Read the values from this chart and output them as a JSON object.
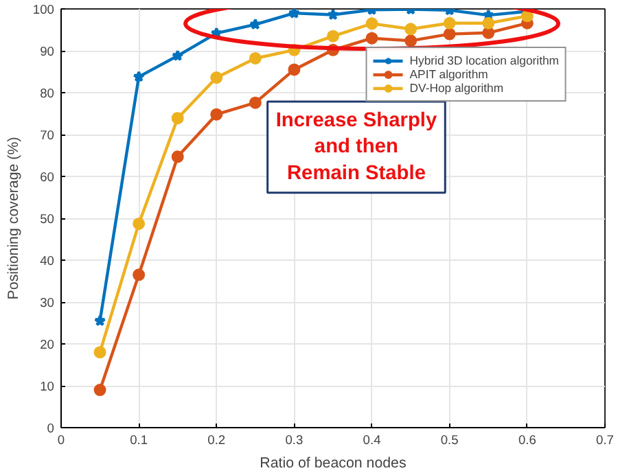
{
  "chart_data": {
    "type": "line",
    "xlabel": "Ratio of beacon nodes",
    "ylabel": "Positioning coverage (%)",
    "x": [
      0.05,
      0.1,
      0.15,
      0.2,
      0.25,
      0.3,
      0.35,
      0.4,
      0.45,
      0.5,
      0.55,
      0.6
    ],
    "series": [
      {
        "name": "Hybrid 3D location algorithm",
        "color": "#0072bd",
        "marker": "star",
        "values": [
          25.5,
          83.8,
          88.8,
          94.2,
          96.3,
          99,
          98.6,
          99.8,
          99.9,
          99.7,
          98.5,
          99.4
        ]
      },
      {
        "name": "APIT algorithm",
        "color": "#d95319",
        "marker": "circle",
        "values": [
          9,
          36.5,
          64.7,
          74.8,
          77.6,
          85.5,
          90.2,
          93,
          92.4,
          94,
          94.3,
          96.6
        ]
      },
      {
        "name": "DV-Hop algorithm",
        "color": "#edb120",
        "marker": "circle",
        "values": [
          18,
          48.7,
          73.9,
          83.6,
          88.2,
          90.2,
          93.5,
          96.5,
          95.2,
          96.6,
          96.6,
          98.3
        ]
      }
    ],
    "annotations": [
      "Increase Sharply\nand then\nRemain Stable"
    ],
    "xlim": [
      0,
      0.7
    ],
    "xticks": [
      0,
      0.1,
      0.2,
      0.3,
      0.4,
      0.5,
      0.6,
      0.7
    ],
    "ylim": [
      0,
      100
    ],
    "yticks": [
      0,
      10,
      20,
      30,
      40,
      50,
      60,
      70,
      80,
      90,
      100
    ],
    "grid": true,
    "legend": "top right",
    "line_style": "solid"
  }
}
